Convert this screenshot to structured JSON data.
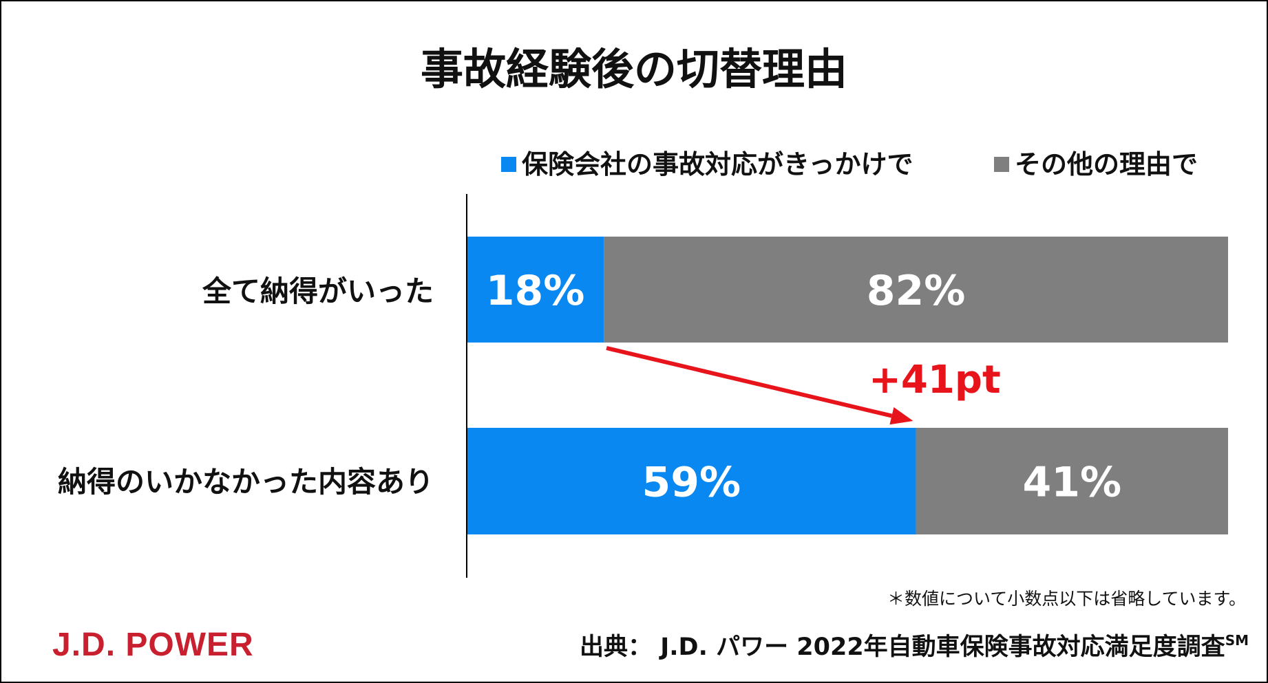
{
  "colors": {
    "primary": "#0a88f2",
    "other": "#7f7f7f",
    "accent": "#e8141b",
    "logo": "#c8202e"
  },
  "chart_data": {
    "type": "bar",
    "orientation": "horizontal",
    "stacked": true,
    "title": "事故経験後の切替理由",
    "categories": [
      "全て納得がいった",
      "納得のいかなかった内容あり"
    ],
    "series": [
      {
        "name": "保険会社の事故対応がきっかけで",
        "values": [
          18,
          59
        ],
        "labels": [
          "18%",
          "59%"
        ]
      },
      {
        "name": "その他の理由で",
        "values": [
          82,
          41
        ],
        "labels": [
          "82%",
          "41%"
        ]
      }
    ],
    "xlim": [
      0,
      100
    ],
    "legend": "top",
    "grid": false,
    "annotation": "+41pt"
  },
  "footer": {
    "note": "＊数値について小数点以下は省略しています。",
    "source": "出典： J.D. パワー 2022年自動車保険事故対応満足度調査",
    "source_mark": "SM",
    "logo_text": "J.D. POWER"
  }
}
